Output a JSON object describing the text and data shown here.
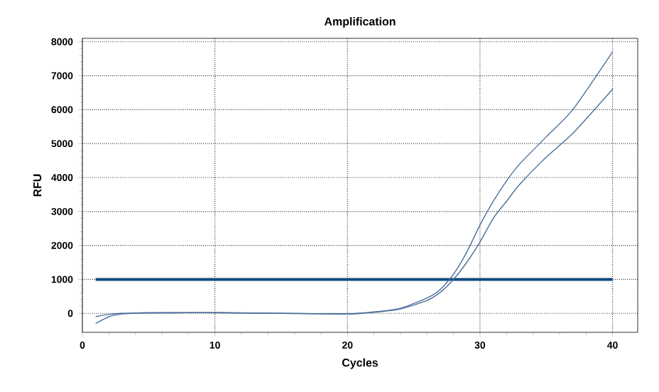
{
  "chart_data": {
    "type": "line",
    "title": "Amplification",
    "xlabel": "Cycles",
    "ylabel": "RFU",
    "series": [
      {
        "color": "#4a6f9c",
        "x": [
          1,
          2,
          3,
          5,
          10,
          15,
          20,
          22,
          24,
          26,
          27,
          28,
          29,
          30,
          31,
          32,
          33,
          35,
          37,
          40
        ],
        "values": [
          -300,
          -100,
          -20,
          20,
          20,
          0,
          -10,
          40,
          150,
          450,
          700,
          1150,
          1800,
          2600,
          3300,
          3900,
          4400,
          5200,
          6000,
          7700
        ]
      },
      {
        "color": "#4a6f9c",
        "x": [
          1,
          2,
          3,
          5,
          10,
          15,
          20,
          22,
          24,
          26,
          27,
          28,
          29,
          30,
          31,
          32,
          33,
          35,
          37,
          40
        ],
        "values": [
          -100,
          -30,
          0,
          10,
          20,
          0,
          -20,
          30,
          130,
          380,
          620,
          1000,
          1500,
          2100,
          2800,
          3300,
          3800,
          4600,
          5300,
          6600
        ]
      }
    ],
    "xlim": [
      0,
      41.9
    ],
    "ylim": [
      -560,
      8100
    ],
    "xticks": [
      0,
      10,
      20,
      30,
      40
    ],
    "yticks": [
      0,
      1000,
      2000,
      3000,
      4000,
      5000,
      6000,
      7000,
      8000
    ],
    "ref_lines": [
      {
        "axis": "y",
        "value": 1000,
        "color": "#0b4a80"
      }
    ],
    "grid": true,
    "marker": "none",
    "line_style": "solid"
  }
}
